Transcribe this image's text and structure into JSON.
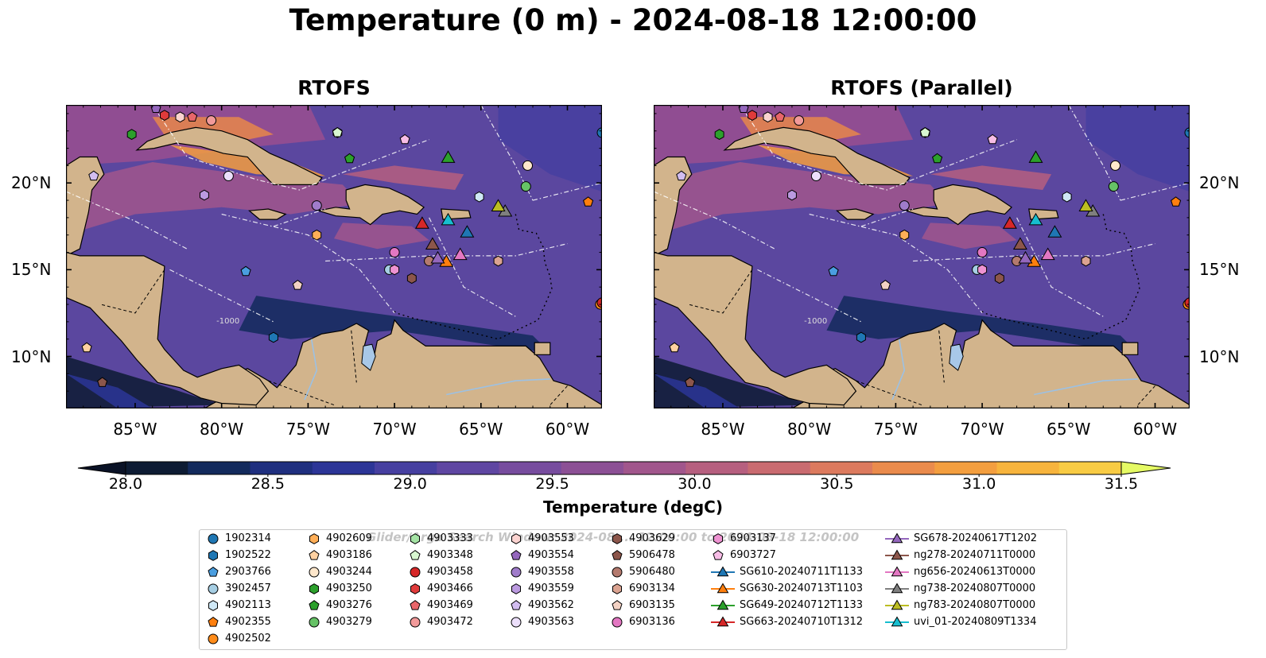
{
  "title": "Temperature (0 m) - 2024-08-18 12:00:00",
  "panels": [
    {
      "title": "RTOFS"
    },
    {
      "title": "RTOFS (Parallel)"
    }
  ],
  "map": {
    "lon_range": [
      -89,
      -58
    ],
    "lat_range": [
      7,
      24.5
    ],
    "lon_ticks": [
      {
        "value": -85,
        "label": "85°W"
      },
      {
        "value": -80,
        "label": "80°W"
      },
      {
        "value": -75,
        "label": "75°W"
      },
      {
        "value": -70,
        "label": "70°W"
      },
      {
        "value": -65,
        "label": "65°W"
      },
      {
        "value": -60,
        "label": "60°W"
      }
    ],
    "lat_ticks": [
      {
        "value": 20,
        "label": "20°N"
      },
      {
        "value": 15,
        "label": "15°N"
      },
      {
        "value": 10,
        "label": "10°N"
      }
    ],
    "land_color": "#d2b48c",
    "contour_label": "-1000"
  },
  "colorbar": {
    "title": "Temperature (degC)",
    "min": 28.0,
    "max": 31.5,
    "extend": "both",
    "tick_labels": [
      "28.0",
      "28.5",
      "29.0",
      "29.5",
      "30.0",
      "30.5",
      "31.0",
      "31.5"
    ],
    "tick_values": [
      28.0,
      28.5,
      29.0,
      29.5,
      30.0,
      30.5,
      31.0,
      31.5
    ],
    "colors": [
      "#0d1b33",
      "#132a5c",
      "#1f2f7f",
      "#2c3597",
      "#463fa0",
      "#5f46a2",
      "#774c9e",
      "#8c5095",
      "#a1568c",
      "#b65f7f",
      "#c96b70",
      "#dc7a5e",
      "#ea8b4c",
      "#f39e3f",
      "#f7b43d",
      "#f8cb44"
    ],
    "under_color": "#0a1226",
    "over_color": "#e5fa64"
  },
  "legend": {
    "watermark": "Glider/Argo Search Window: 2024-08-... 12:00:00 to 2024-08-18 12:00:00",
    "columns": [
      [
        {
          "label": "1902314",
          "marker": "circle",
          "color": "#1f77b4"
        },
        {
          "label": "1902522",
          "marker": "hexagon",
          "color": "#1f77b4"
        },
        {
          "label": "2903766",
          "marker": "pentagon",
          "color": "#4a9ee0"
        },
        {
          "label": "3902457",
          "marker": "circle",
          "color": "#a6cee3"
        },
        {
          "label": "4902113",
          "marker": "hexagon",
          "color": "#cfe8f6"
        },
        {
          "label": "4902355",
          "marker": "pentagon",
          "color": "#ff7f0e"
        },
        {
          "label": "4902502",
          "marker": "circle",
          "color": "#ff8c1a"
        }
      ],
      [
        {
          "label": "4902609",
          "marker": "hexagon",
          "color": "#ffae57"
        },
        {
          "label": "4903186",
          "marker": "pentagon",
          "color": "#ffd1a1"
        },
        {
          "label": "4903244",
          "marker": "circle",
          "color": "#ffe8cc"
        },
        {
          "label": "4903250",
          "marker": "hexagon",
          "color": "#2ca02c"
        },
        {
          "label": "4903276",
          "marker": "pentagon",
          "color": "#2ca02c"
        },
        {
          "label": "4903279",
          "marker": "circle",
          "color": "#66c266"
        }
      ],
      [
        {
          "label": "4903333",
          "marker": "hexagon",
          "color": "#a4e3a4"
        },
        {
          "label": "4903348",
          "marker": "pentagon",
          "color": "#d8f7d0"
        },
        {
          "label": "4903458",
          "marker": "circle",
          "color": "#d62728"
        },
        {
          "label": "4903466",
          "marker": "hexagon",
          "color": "#e03b3b"
        },
        {
          "label": "4903469",
          "marker": "pentagon",
          "color": "#e8666a"
        },
        {
          "label": "4903472",
          "marker": "circle",
          "color": "#f29a9a"
        }
      ],
      [
        {
          "label": "4903553",
          "marker": "hexagon",
          "color": "#fbd3d0"
        },
        {
          "label": "4903554",
          "marker": "pentagon",
          "color": "#9467bd"
        },
        {
          "label": "4903558",
          "marker": "circle",
          "color": "#a07ccb"
        },
        {
          "label": "4903559",
          "marker": "hexagon",
          "color": "#bb9ae0"
        },
        {
          "label": "4903562",
          "marker": "pentagon",
          "color": "#d2bdf0"
        },
        {
          "label": "4903563",
          "marker": "circle",
          "color": "#ecdffb"
        }
      ],
      [
        {
          "label": "4903629",
          "marker": "hexagon",
          "color": "#8c564b"
        },
        {
          "label": "5906478",
          "marker": "pentagon",
          "color": "#8c564b"
        },
        {
          "label": "5906480",
          "marker": "circle",
          "color": "#b47a6e"
        },
        {
          "label": "6903134",
          "marker": "hexagon",
          "color": "#dba391"
        },
        {
          "label": "6903135",
          "marker": "pentagon",
          "color": "#f3d2c4"
        },
        {
          "label": "6903136",
          "marker": "circle",
          "color": "#e377c2"
        }
      ],
      [
        {
          "label": "6903137",
          "marker": "hexagon",
          "color": "#ee93d2"
        },
        {
          "label": "6903727",
          "marker": "pentagon",
          "color": "#f7bde6"
        },
        {
          "label": "SG610-20240711T1133",
          "marker": "triangle-line",
          "color": "#1f77b4"
        },
        {
          "label": "SG630-20240713T1103",
          "marker": "triangle-line",
          "color": "#ff7f0e"
        },
        {
          "label": "SG649-20240712T1133",
          "marker": "triangle-line",
          "color": "#2ca02c"
        },
        {
          "label": "SG663-20240710T1312",
          "marker": "triangle-line",
          "color": "#d62728"
        }
      ],
      [
        {
          "label": "SG678-20240617T1202",
          "marker": "triangle-line",
          "color": "#9467bd"
        },
        {
          "label": "ng278-20240711T0000",
          "marker": "triangle-line",
          "color": "#8c564b"
        },
        {
          "label": "ng656-20240613T0000",
          "marker": "triangle-line",
          "color": "#e377c2"
        },
        {
          "label": "ng738-20240807T0000",
          "marker": "triangle-line",
          "color": "#7f7f7f"
        },
        {
          "label": "ng783-20240807T0000",
          "marker": "triangle-line",
          "color": "#bcbd22"
        },
        {
          "label": "uvi_01-20240809T1334",
          "marker": "triangle-line",
          "color": "#17becf"
        }
      ]
    ]
  },
  "platforms": [
    {
      "id": "1902314",
      "lon": -58.0,
      "lat": 22.9,
      "marker": "circle",
      "color": "#1f77b4"
    },
    {
      "id": "1902522",
      "lon": -77.0,
      "lat": 11.1,
      "marker": "hexagon",
      "color": "#1f77b4"
    },
    {
      "id": "2903766",
      "lon": -78.6,
      "lat": 14.9,
      "marker": "pentagon",
      "color": "#4a9ee0"
    },
    {
      "id": "3902457",
      "lon": -70.3,
      "lat": 15.0,
      "marker": "circle",
      "color": "#a6cee3"
    },
    {
      "id": "4902113",
      "lon": -65.1,
      "lat": 19.2,
      "marker": "hexagon",
      "color": "#cfe8f6"
    },
    {
      "id": "4902355",
      "lon": -58.8,
      "lat": 18.9,
      "marker": "pentagon",
      "color": "#ff7f0e"
    },
    {
      "id": "4902502",
      "lon": -58.1,
      "lat": 13.0,
      "marker": "circle",
      "color": "#ff8c1a"
    },
    {
      "id": "4902609",
      "lon": -74.5,
      "lat": 17.0,
      "marker": "hexagon",
      "color": "#ffae57"
    },
    {
      "id": "4903186",
      "lon": -87.8,
      "lat": 10.5,
      "marker": "pentagon",
      "color": "#ffd1a1"
    },
    {
      "id": "4903244",
      "lon": -62.3,
      "lat": 21.0,
      "marker": "circle",
      "color": "#ffe8cc"
    },
    {
      "id": "4903250",
      "lon": -85.2,
      "lat": 22.8,
      "marker": "hexagon",
      "color": "#2ca02c"
    },
    {
      "id": "4903276",
      "lon": -72.6,
      "lat": 21.4,
      "marker": "pentagon",
      "color": "#2ca02c"
    },
    {
      "id": "4903279",
      "lon": -62.4,
      "lat": 19.8,
      "marker": "circle",
      "color": "#66c266"
    },
    {
      "id": "4903333",
      "lon": -73.3,
      "lat": 22.9,
      "marker": "hexagon",
      "color": "#a4e3a4"
    },
    {
      "id": "4903348",
      "lon": -73.3,
      "lat": 22.9,
      "marker": "pentagon",
      "color": "#d8f7d0"
    },
    {
      "id": "4903458",
      "lon": -58.0,
      "lat": 13.1,
      "marker": "circle",
      "color": "#d62728"
    },
    {
      "id": "4903466",
      "lon": -83.3,
      "lat": 23.9,
      "marker": "hexagon",
      "color": "#e03b3b"
    },
    {
      "id": "4903469",
      "lon": -81.7,
      "lat": 23.8,
      "marker": "pentagon",
      "color": "#e8666a"
    },
    {
      "id": "4903472",
      "lon": -80.6,
      "lat": 23.6,
      "marker": "circle",
      "color": "#f29a9a"
    },
    {
      "id": "4903553",
      "lon": -82.4,
      "lat": 23.8,
      "marker": "hexagon",
      "color": "#fbd3d0"
    },
    {
      "id": "4903554",
      "lon": -83.8,
      "lat": 24.3,
      "marker": "pentagon",
      "color": "#9467bd"
    },
    {
      "id": "4903558",
      "lon": -74.5,
      "lat": 18.7,
      "marker": "circle",
      "color": "#a07ccb"
    },
    {
      "id": "4903559",
      "lon": -81.0,
      "lat": 19.3,
      "marker": "hexagon",
      "color": "#bb9ae0"
    },
    {
      "id": "4903562",
      "lon": -87.4,
      "lat": 20.4,
      "marker": "pentagon",
      "color": "#d2bdf0"
    },
    {
      "id": "4903563",
      "lon": -79.6,
      "lat": 20.4,
      "marker": "circle",
      "color": "#ecdffb"
    },
    {
      "id": "4903629",
      "lon": -69.0,
      "lat": 14.5,
      "marker": "hexagon",
      "color": "#8c564b"
    },
    {
      "id": "5906478",
      "lon": -86.9,
      "lat": 8.5,
      "marker": "pentagon",
      "color": "#8c564b"
    },
    {
      "id": "5906480",
      "lon": -68.0,
      "lat": 15.5,
      "marker": "circle",
      "color": "#b47a6e"
    },
    {
      "id": "6903134",
      "lon": -64.0,
      "lat": 15.5,
      "marker": "hexagon",
      "color": "#dba391"
    },
    {
      "id": "6903135",
      "lon": -75.6,
      "lat": 14.1,
      "marker": "pentagon",
      "color": "#f3d2c4"
    },
    {
      "id": "6903136",
      "lon": -70.0,
      "lat": 16.0,
      "marker": "circle",
      "color": "#e377c2"
    },
    {
      "id": "6903137",
      "lon": -70.0,
      "lat": 15.0,
      "marker": "hexagon",
      "color": "#ee93d2"
    },
    {
      "id": "6903727",
      "lon": -69.4,
      "lat": 22.5,
      "marker": "pentagon",
      "color": "#f7bde6"
    }
  ],
  "gliders": [
    {
      "id": "SG610-20240711T1133",
      "lon": -65.8,
      "lat": 17.1,
      "color": "#1f77b4"
    },
    {
      "id": "SG630-20240713T1103",
      "lon": -67.0,
      "lat": 15.4,
      "color": "#ff7f0e"
    },
    {
      "id": "SG649-20240712T1133",
      "lon": -66.9,
      "lat": 21.4,
      "color": "#2ca02c"
    },
    {
      "id": "SG663-20240710T1312",
      "lon": -68.4,
      "lat": 17.6,
      "color": "#d62728"
    },
    {
      "id": "SG678-20240617T1202",
      "lon": -67.5,
      "lat": 15.6,
      "color": "#9467bd"
    },
    {
      "id": "ng278-20240711T0000",
      "lon": -67.8,
      "lat": 16.4,
      "color": "#8c564b"
    },
    {
      "id": "ng656-20240613T0000",
      "lon": -66.2,
      "lat": 15.8,
      "color": "#e377c2"
    },
    {
      "id": "ng738-20240807T0000",
      "lon": -63.6,
      "lat": 18.3,
      "color": "#7f7f7f"
    },
    {
      "id": "ng783-20240807T0000",
      "lon": -64.0,
      "lat": 18.6,
      "color": "#bcbd22"
    },
    {
      "id": "uvi_01-20240809T1334",
      "lon": -66.9,
      "lat": 17.8,
      "color": "#17becf"
    }
  ]
}
